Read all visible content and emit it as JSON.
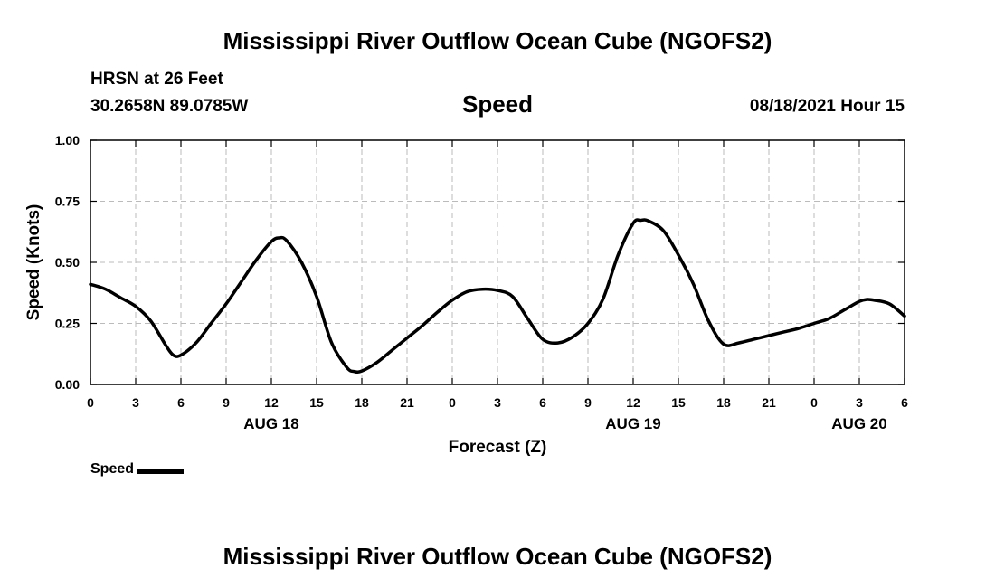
{
  "header": {
    "title": "Mississippi River Outflow Ocean Cube (NGOFS2)",
    "station": "HRSN at 26 Feet",
    "coordinates": "30.2658N  89.0785W",
    "variable": "Speed",
    "datetime": "08/18/2021 Hour 15"
  },
  "footer": {
    "title": "Mississippi River Outflow Ocean Cube (NGOFS2)"
  },
  "legend": {
    "label": "Speed"
  },
  "chart_data": {
    "type": "line",
    "title": "Speed",
    "xlabel": "Forecast (Z)",
    "ylabel": "Speed (Knots)",
    "xlim": [
      0,
      54
    ],
    "ylim": [
      0,
      1
    ],
    "yticks": [
      0,
      0.25,
      0.5,
      0.75,
      1
    ],
    "ytick_labels": [
      "0.00",
      "0.25",
      "0.50",
      "0.75",
      "1.00"
    ],
    "xticks": [
      0,
      3,
      6,
      9,
      12,
      15,
      18,
      21,
      24,
      27,
      30,
      33,
      36,
      39,
      42,
      45,
      48,
      51,
      54
    ],
    "xtick_labels": [
      "0",
      "3",
      "6",
      "9",
      "12",
      "15",
      "18",
      "21",
      "0",
      "3",
      "6",
      "9",
      "12",
      "15",
      "18",
      "21",
      "0",
      "3",
      "6"
    ],
    "date_labels": [
      {
        "x": 12,
        "label": "AUG 18"
      },
      {
        "x": 36,
        "label": "AUG 19"
      },
      {
        "x": 51,
        "label": "AUG 20"
      }
    ],
    "grid": true,
    "line_color": "#000000",
    "series": [
      {
        "name": "Speed",
        "x": [
          0,
          1,
          2,
          3,
          4,
          5,
          5.5,
          6,
          7,
          8,
          9,
          10,
          11,
          12,
          12.5,
          13,
          14,
          15,
          16,
          17,
          17.5,
          18,
          19,
          20,
          21,
          22,
          23,
          24,
          25,
          26,
          27,
          28,
          29,
          30,
          31,
          32,
          33,
          34,
          35,
          36,
          36.5,
          37,
          38,
          39,
          40,
          41,
          42,
          43,
          44,
          45,
          46,
          47,
          48,
          49,
          50,
          51,
          51.5,
          52,
          53,
          54
        ],
        "y": [
          0.41,
          0.39,
          0.355,
          0.32,
          0.26,
          0.16,
          0.12,
          0.12,
          0.17,
          0.25,
          0.33,
          0.42,
          0.51,
          0.585,
          0.6,
          0.59,
          0.5,
          0.36,
          0.17,
          0.07,
          0.053,
          0.055,
          0.09,
          0.14,
          0.19,
          0.24,
          0.295,
          0.345,
          0.38,
          0.39,
          0.385,
          0.36,
          0.27,
          0.185,
          0.17,
          0.195,
          0.25,
          0.35,
          0.53,
          0.66,
          0.672,
          0.67,
          0.63,
          0.53,
          0.41,
          0.26,
          0.165,
          0.17,
          0.185,
          0.2,
          0.215,
          0.23,
          0.25,
          0.27,
          0.305,
          0.34,
          0.348,
          0.345,
          0.33,
          0.28
        ]
      }
    ]
  }
}
